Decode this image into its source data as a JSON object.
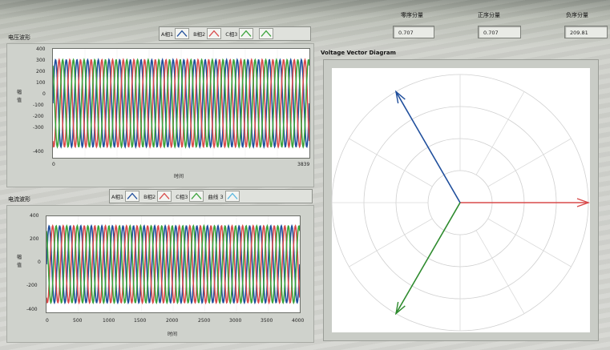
{
  "indicators": {
    "zero_seq": {
      "label": "零序分量",
      "value": "0.707"
    },
    "pos_seq": {
      "label": "正序分量",
      "value": "0.707"
    },
    "neg_seq": {
      "label": "负序分量",
      "value": "209.81"
    }
  },
  "voltage_graph": {
    "title": "电压波形",
    "legend": [
      "A相1",
      "B相2",
      "C相3",
      ""
    ],
    "ylabel": "幅值",
    "xlabel": "时间",
    "yticks": [
      "400",
      "300",
      "200",
      "100",
      "0",
      "-100",
      "-200",
      "-300",
      "-400"
    ],
    "xticks": [
      "0",
      "3839"
    ]
  },
  "current_graph": {
    "title": "电流波形",
    "legend": [
      "A相1",
      "B相2",
      "C相3",
      "曲线 3",
      ""
    ],
    "ylabel": "幅值",
    "xlabel": "时间",
    "yticks": [
      "400",
      "200",
      "0",
      "-200",
      "-400"
    ],
    "xticks": [
      "0",
      "500",
      "1000",
      "1500",
      "2000",
      "2500",
      "3000",
      "3500",
      "4000"
    ]
  },
  "vector_diagram": {
    "title": "Voltage Vector Diagram"
  },
  "colors": {
    "phase_a": "#1f4e9c",
    "phase_b": "#d84a4a",
    "phase_c": "#3aa23a",
    "curve3": "#5bb8e0"
  },
  "chart_data": [
    {
      "type": "line",
      "title": "电压波形",
      "xlabel": "时间",
      "ylabel": "幅值",
      "xlim": [
        0,
        3839
      ],
      "ylim": [
        -400,
        400
      ],
      "amplitude": 320,
      "cycles": 24,
      "phase_degrees": [
        0,
        -120,
        120
      ],
      "series": [
        {
          "name": "A相1"
        },
        {
          "name": "B相2"
        },
        {
          "name": "C相3"
        }
      ]
    },
    {
      "type": "line",
      "title": "电流波形",
      "xlabel": "时间",
      "ylabel": "幅值",
      "xlim": [
        0,
        4000
      ],
      "ylim": [
        -400,
        400
      ],
      "amplitude": 320,
      "cycles": 24,
      "phase_degrees": [
        0,
        -120,
        120
      ],
      "series": [
        {
          "name": "A相1"
        },
        {
          "name": "B相2"
        },
        {
          "name": "C相3"
        }
      ]
    },
    {
      "type": "scatter",
      "title": "Voltage Vector Diagram",
      "vectors": [
        {
          "angle_deg": 0,
          "magnitude": 1.0,
          "color": "#d84a4a"
        },
        {
          "angle_deg": 120,
          "magnitude": 1.0,
          "color": "#1f4e9c"
        },
        {
          "angle_deg": 240,
          "magnitude": 1.0,
          "color": "#2e8b2e"
        }
      ]
    }
  ]
}
